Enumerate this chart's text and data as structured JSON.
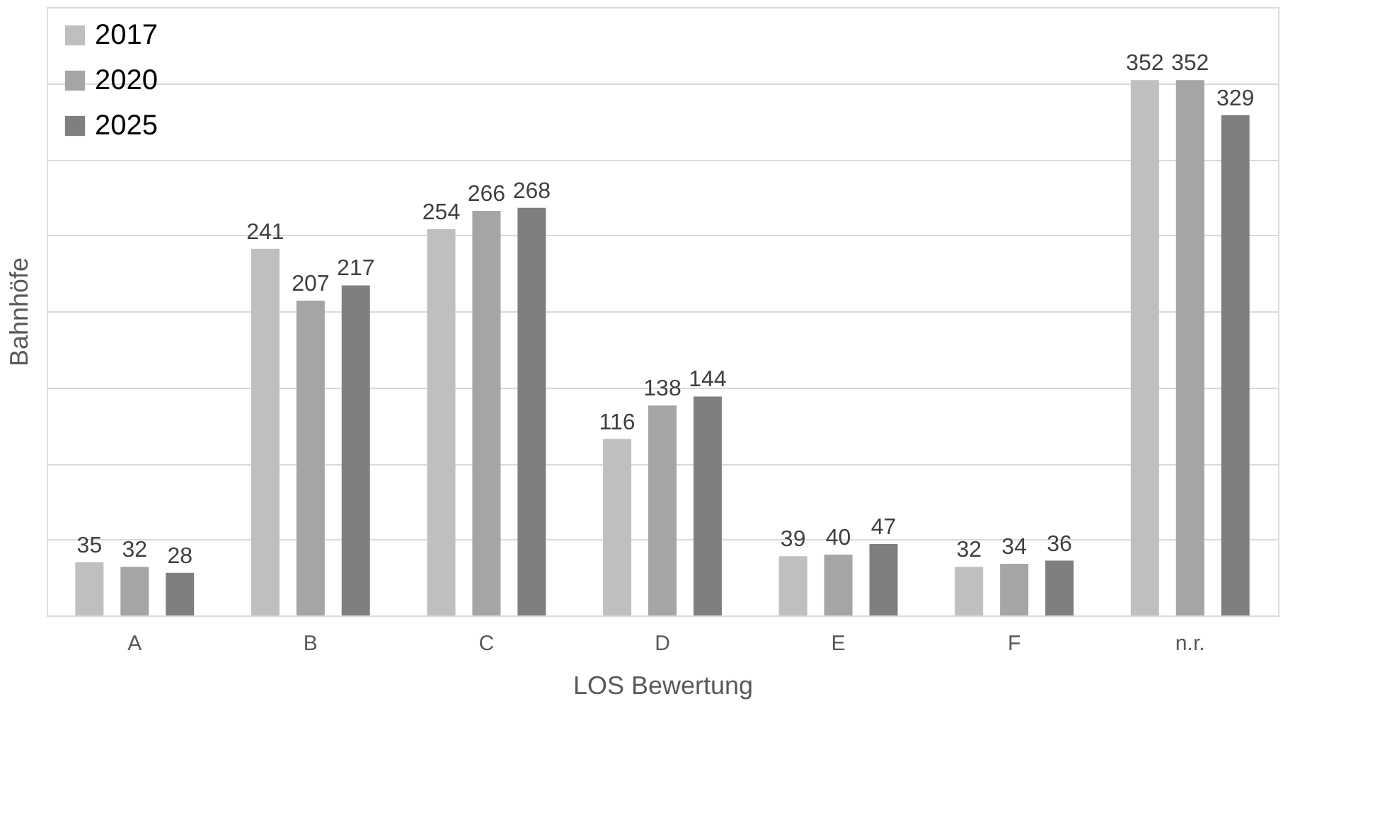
{
  "chart_data": {
    "type": "bar",
    "xlabel": "LOS Bewertung",
    "ylabel": "Bahnhöfe",
    "categories": [
      "A",
      "B",
      "C",
      "D",
      "E",
      "F",
      "n.r."
    ],
    "series": [
      {
        "name": "2017",
        "color": "#bfbfbf",
        "values": [
          35,
          241,
          254,
          116,
          39,
          32,
          352
        ]
      },
      {
        "name": "2020",
        "color": "#a5a5a5",
        "values": [
          32,
          207,
          266,
          138,
          40,
          34,
          352
        ]
      },
      {
        "name": "2025",
        "color": "#7f7f7f",
        "values": [
          28,
          217,
          268,
          144,
          47,
          36,
          329
        ]
      }
    ],
    "ylim": [
      0,
      400
    ],
    "yticks": [
      {
        "value": 0,
        "label": null
      },
      {
        "value": 50,
        "label": null
      },
      {
        "value": 100,
        "label": null
      },
      {
        "value": 150,
        "label": null
      },
      {
        "value": 200,
        "label": null
      },
      {
        "value": 250,
        "label": null
      },
      {
        "value": 300,
        "label": null
      },
      {
        "value": 350,
        "label": null
      },
      {
        "value": 400,
        "label": null
      }
    ],
    "tick_labels": "x",
    "grid": "y",
    "legend": "top left",
    "data_labels": true
  }
}
